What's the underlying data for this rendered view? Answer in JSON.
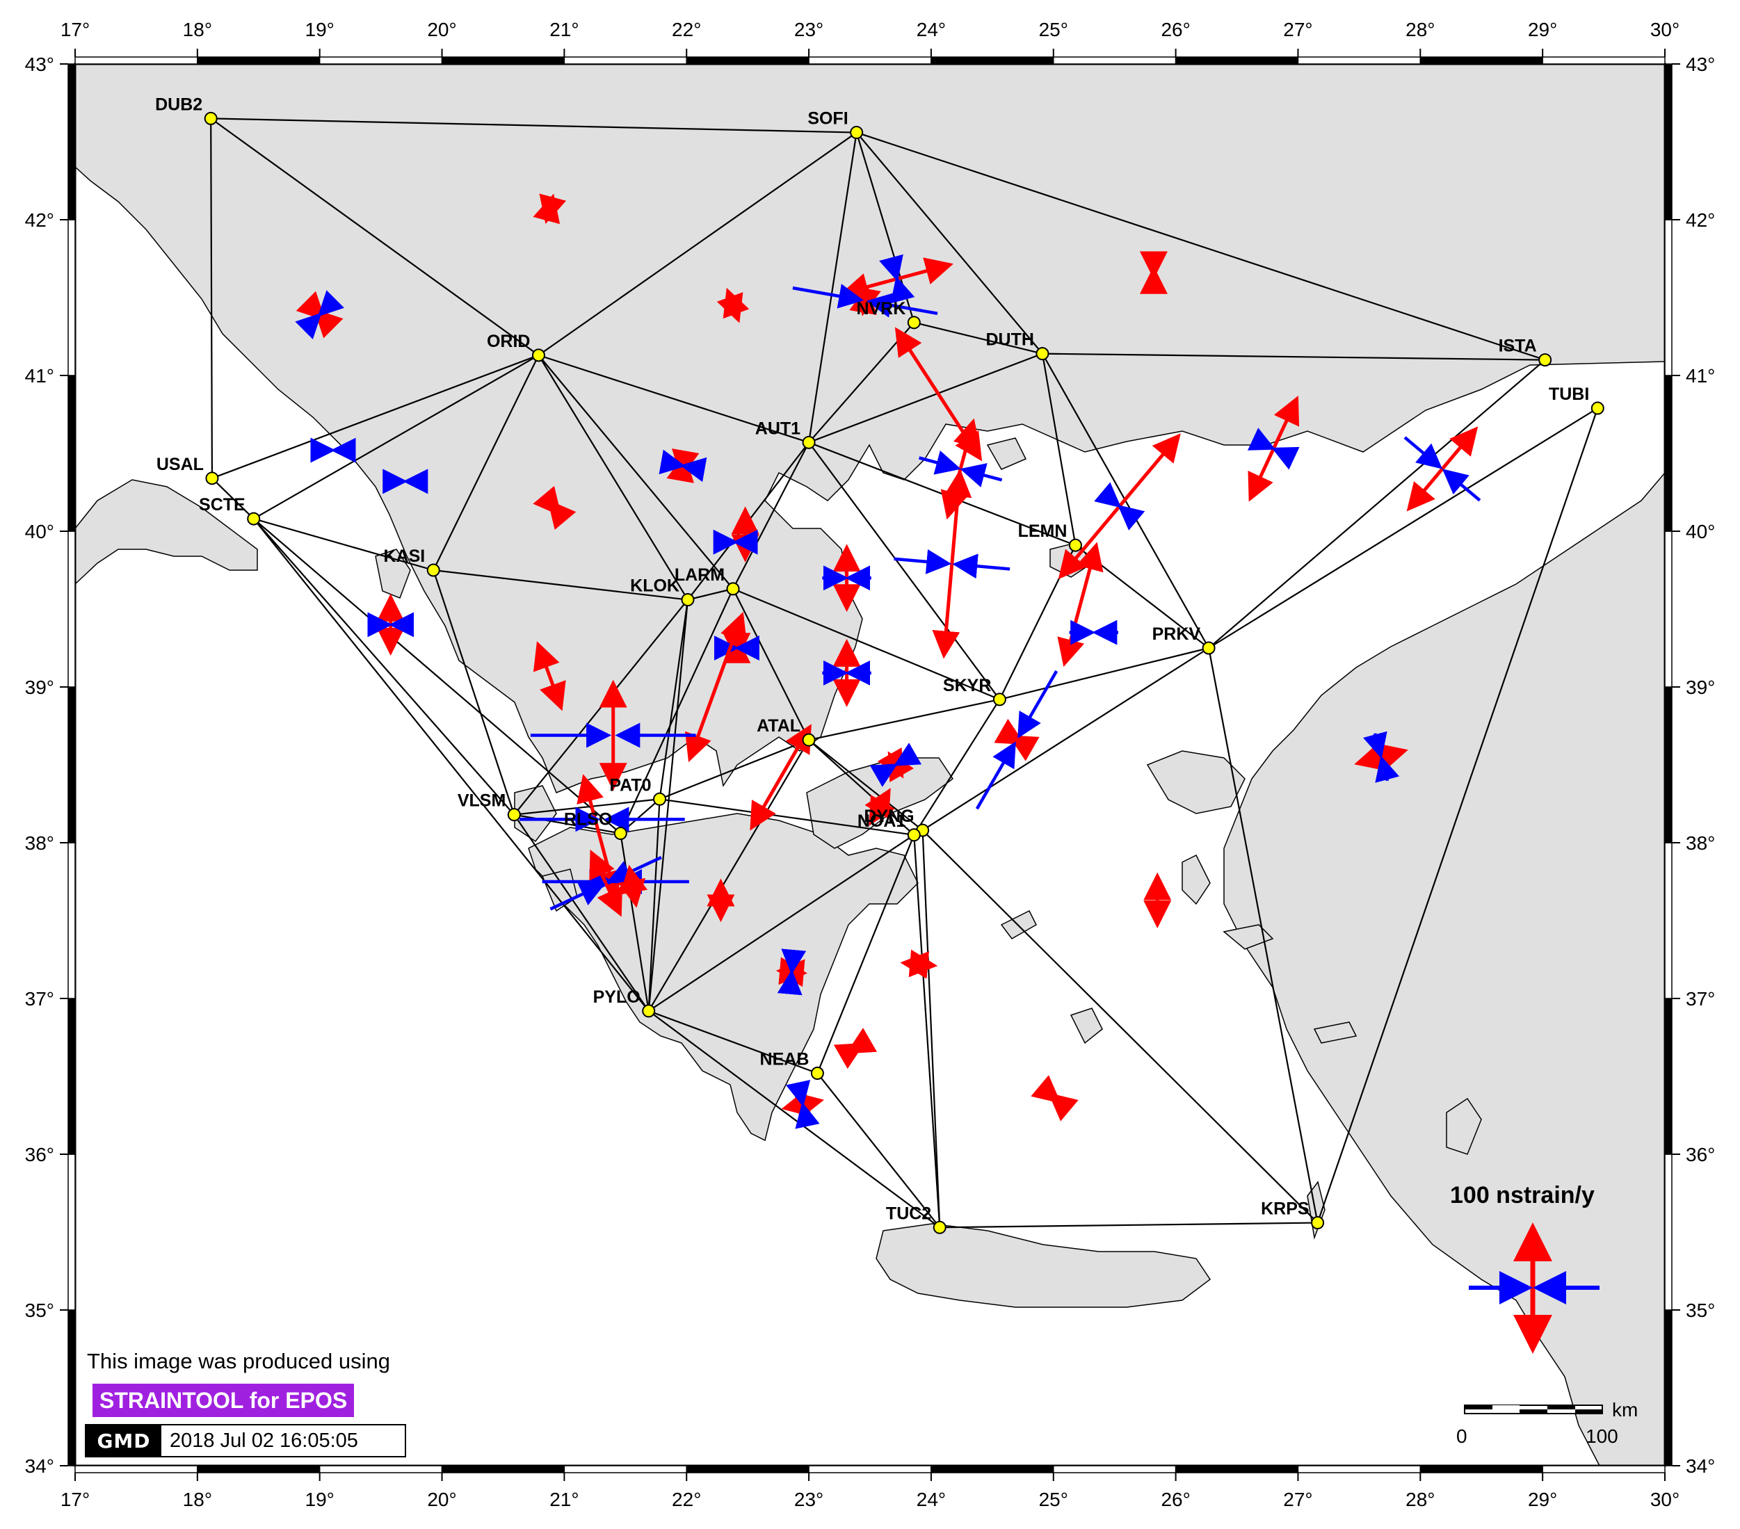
{
  "map": {
    "extent": {
      "lon": [
        17,
        30
      ],
      "lat": [
        34,
        43
      ]
    },
    "lon_ticks": [
      17,
      18,
      19,
      20,
      21,
      22,
      23,
      24,
      25,
      26,
      27,
      28,
      29,
      30
    ],
    "lat_ticks": [
      34,
      35,
      36,
      37,
      38,
      39,
      40,
      41,
      42,
      43
    ],
    "degree_symbol": "°",
    "colors": {
      "land": "#e0e0e0",
      "sea": "#ffffff",
      "network_line": "#000000",
      "station_fill": "#ffff00",
      "extension": "#ff0000",
      "compression": "#0000ff"
    }
  },
  "stations": [
    {
      "name": "DUB2",
      "lon": 18.11,
      "lat": 42.65
    },
    {
      "name": "SOFI",
      "lon": 23.39,
      "lat": 42.56
    },
    {
      "name": "ORID",
      "lon": 20.79,
      "lat": 41.13
    },
    {
      "name": "NVRK",
      "lon": 23.86,
      "lat": 41.34
    },
    {
      "name": "DUTH",
      "lon": 24.91,
      "lat": 41.14
    },
    {
      "name": "ISTA",
      "lon": 29.02,
      "lat": 41.1
    },
    {
      "name": "TUBI",
      "lon": 29.45,
      "lat": 40.79
    },
    {
      "name": "USAL",
      "lon": 18.12,
      "lat": 40.34
    },
    {
      "name": "SCTE",
      "lon": 18.46,
      "lat": 40.08
    },
    {
      "name": "AUT1",
      "lon": 23.0,
      "lat": 40.57
    },
    {
      "name": "KASI",
      "lon": 19.93,
      "lat": 39.75
    },
    {
      "name": "KLOK",
      "lon": 22.01,
      "lat": 39.56
    },
    {
      "name": "LARM",
      "lon": 22.38,
      "lat": 39.63
    },
    {
      "name": "LEMN",
      "lon": 25.18,
      "lat": 39.91
    },
    {
      "name": "PRKV",
      "lon": 26.27,
      "lat": 39.25
    },
    {
      "name": "SKYR",
      "lon": 24.56,
      "lat": 38.92
    },
    {
      "name": "ATAL",
      "lon": 23.0,
      "lat": 38.66
    },
    {
      "name": "PAT0",
      "lon": 21.78,
      "lat": 38.28
    },
    {
      "name": "VLSM",
      "lon": 20.59,
      "lat": 38.18
    },
    {
      "name": "RLSO",
      "lon": 21.46,
      "lat": 38.06
    },
    {
      "name": "DYNG",
      "lon": 23.93,
      "lat": 38.08
    },
    {
      "name": "NOA1",
      "lon": 23.86,
      "lat": 38.05
    },
    {
      "name": "PYLO",
      "lon": 21.69,
      "lat": 36.92
    },
    {
      "name": "NEAB",
      "lon": 23.07,
      "lat": 36.52
    },
    {
      "name": "TUC2",
      "lon": 24.07,
      "lat": 35.53
    },
    {
      "name": "KRPS",
      "lon": 27.16,
      "lat": 35.56
    }
  ],
  "network_edges": [
    [
      "DUB2",
      "SOFI"
    ],
    [
      "DUB2",
      "USAL"
    ],
    [
      "DUB2",
      "ORID"
    ],
    [
      "SOFI",
      "ORID"
    ],
    [
      "SOFI",
      "AUT1"
    ],
    [
      "SOFI",
      "NVRK"
    ],
    [
      "SOFI",
      "DUTH"
    ],
    [
      "SOFI",
      "ISTA"
    ],
    [
      "ORID",
      "USAL"
    ],
    [
      "ORID",
      "SCTE"
    ],
    [
      "ORID",
      "KASI"
    ],
    [
      "ORID",
      "KLOK"
    ],
    [
      "ORID",
      "AUT1"
    ],
    [
      "ORID",
      "LARM"
    ],
    [
      "USAL",
      "SCTE"
    ],
    [
      "NVRK",
      "AUT1"
    ],
    [
      "NVRK",
      "DUTH"
    ],
    [
      "DUTH",
      "AUT1"
    ],
    [
      "DUTH",
      "ISTA"
    ],
    [
      "DUTH",
      "LEMN"
    ],
    [
      "DUTH",
      "PRKV"
    ],
    [
      "ISTA",
      "PRKV"
    ],
    [
      "TUBI",
      "PRKV"
    ],
    [
      "TUBI",
      "KRPS"
    ],
    [
      "AUT1",
      "KLOK"
    ],
    [
      "AUT1",
      "LARM"
    ],
    [
      "AUT1",
      "LEMN"
    ],
    [
      "AUT1",
      "SKYR"
    ],
    [
      "SCTE",
      "KASI"
    ],
    [
      "SCTE",
      "VLSM"
    ],
    [
      "SCTE",
      "RLSO"
    ],
    [
      "SCTE",
      "PYLO"
    ],
    [
      "KASI",
      "KLOK"
    ],
    [
      "KASI",
      "VLSM"
    ],
    [
      "KLOK",
      "LARM"
    ],
    [
      "KLOK",
      "VLSM"
    ],
    [
      "KLOK",
      "PAT0"
    ],
    [
      "KLOK",
      "PYLO"
    ],
    [
      "LARM",
      "SKYR"
    ],
    [
      "LARM",
      "ATAL"
    ],
    [
      "LARM",
      "RLSO"
    ],
    [
      "LEMN",
      "PRKV"
    ],
    [
      "LEMN",
      "SKYR"
    ],
    [
      "PRKV",
      "SKYR"
    ],
    [
      "PRKV",
      "KRPS"
    ],
    [
      "PRKV",
      "DYNG"
    ],
    [
      "SKYR",
      "ATAL"
    ],
    [
      "SKYR",
      "NOA1"
    ],
    [
      "ATAL",
      "PAT0"
    ],
    [
      "ATAL",
      "NOA1"
    ],
    [
      "ATAL",
      "DYNG"
    ],
    [
      "ATAL",
      "PYLO"
    ],
    [
      "PAT0",
      "VLSM"
    ],
    [
      "PAT0",
      "RLSO"
    ],
    [
      "PAT0",
      "NOA1"
    ],
    [
      "PAT0",
      "PYLO"
    ],
    [
      "VLSM",
      "RLSO"
    ],
    [
      "VLSM",
      "PYLO"
    ],
    [
      "RLSO",
      "PYLO"
    ],
    [
      "NOA1",
      "PYLO"
    ],
    [
      "NOA1",
      "NEAB"
    ],
    [
      "NOA1",
      "TUC2"
    ],
    [
      "DYNG",
      "TUC2"
    ],
    [
      "DYNG",
      "KRPS"
    ],
    [
      "PYLO",
      "NEAB"
    ],
    [
      "PYLO",
      "TUC2"
    ],
    [
      "NEAB",
      "TUC2"
    ],
    [
      "TUC2",
      "KRPS"
    ]
  ],
  "strain_axes": [
    {
      "lon": 19.0,
      "lat": 41.39,
      "ext": 0.08,
      "ext_az": 135,
      "comp": 0.08
    },
    {
      "lon": 20.88,
      "lat": 42.07,
      "ext": 0.2,
      "ext_az": 15,
      "comp": 0.0
    },
    {
      "lon": 22.38,
      "lat": 41.45,
      "ext": 0.25,
      "ext_az": 160,
      "comp": 0.0
    },
    {
      "lon": 19.11,
      "lat": 40.52,
      "ext": 0.0,
      "ext_az": 0,
      "comp": 0.2
    },
    {
      "lon": 19.7,
      "lat": 40.32,
      "ext": 0.0,
      "ext_az": 0,
      "comp": 0.2
    },
    {
      "lon": 21.97,
      "lat": 40.42,
      "ext": 0.15,
      "ext_az": 10,
      "comp": 0.06
    },
    {
      "lon": 20.92,
      "lat": 40.15,
      "ext": 0.12,
      "ext_az": 140,
      "comp": 0.0
    },
    {
      "lon": 23.72,
      "lat": 41.62,
      "ext": 0.9,
      "ext_az": 75,
      "comp": 0.06
    },
    {
      "lon": 23.46,
      "lat": 41.48,
      "ext": 0.2,
      "ext_az": 10,
      "comp": 1.2
    },
    {
      "lon": 24.06,
      "lat": 40.88,
      "ext": 1.25,
      "ext_az": 147,
      "comp": 0.0
    },
    {
      "lon": 24.24,
      "lat": 40.4,
      "ext": 0.8,
      "ext_az": 15,
      "comp": 0.7
    },
    {
      "lon": 24.17,
      "lat": 39.79,
      "ext": 1.5,
      "ext_az": 5,
      "comp": 0.95
    },
    {
      "lon": 25.54,
      "lat": 40.16,
      "ext": 1.5,
      "ext_az": 40,
      "comp": 0.2
    },
    {
      "lon": 25.22,
      "lat": 39.53,
      "ext": 1.0,
      "ext_az": 15,
      "comp": 0.0
    },
    {
      "lon": 25.33,
      "lat": 39.35,
      "ext": 0.0,
      "ext_az": 0,
      "comp": 0.4
    },
    {
      "lon": 26.8,
      "lat": 40.53,
      "ext": 0.9,
      "ext_az": 25,
      "comp": 0.25
    },
    {
      "lon": 28.18,
      "lat": 40.4,
      "ext": 0.85,
      "ext_az": 40,
      "comp": 0.8
    },
    {
      "lon": 25.82,
      "lat": 41.66,
      "ext": 0.05,
      "ext_az": 0,
      "comp": 0.0
    },
    {
      "lon": 22.48,
      "lat": 39.98,
      "ext": 0.4,
      "ext_az": 0,
      "comp": 0.0
    },
    {
      "lon": 22.4,
      "lat": 39.93,
      "ext": 0.0,
      "ext_az": 0,
      "comp": 0.08
    },
    {
      "lon": 23.31,
      "lat": 39.7,
      "ext": 0.5,
      "ext_az": 0,
      "comp": 0.4
    },
    {
      "lon": 23.31,
      "lat": 39.09,
      "ext": 0.5,
      "ext_az": 0,
      "comp": 0.4
    },
    {
      "lon": 22.41,
      "lat": 39.25,
      "ext": 0.15,
      "ext_az": 0,
      "comp": 0.2
    },
    {
      "lon": 22.24,
      "lat": 39.0,
      "ext": 1.25,
      "ext_az": 20,
      "comp": 0.0
    },
    {
      "lon": 19.58,
      "lat": 39.4,
      "ext": 0.45,
      "ext_az": 0,
      "comp": 0.35
    },
    {
      "lon": 20.88,
      "lat": 39.07,
      "ext": 0.55,
      "ext_az": 160,
      "comp": 0.0
    },
    {
      "lon": 21.4,
      "lat": 38.69,
      "ext": 0.85,
      "ext_az": 0,
      "comp": 1.35
    },
    {
      "lon": 21.29,
      "lat": 38.04,
      "ext": 1.0,
      "ext_az": 165,
      "comp": 0.0
    },
    {
      "lon": 21.31,
      "lat": 38.15,
      "ext": 0.0,
      "ext_az": 0,
      "comp": 1.35
    },
    {
      "lon": 21.42,
      "lat": 37.75,
      "ext": 0.0,
      "ext_az": 0,
      "comp": 1.2
    },
    {
      "lon": 21.34,
      "lat": 37.74,
      "ext": 0.55,
      "ext_az": 155,
      "comp": 1.0
    },
    {
      "lon": 21.56,
      "lat": 37.72,
      "ext": 0.3,
      "ext_az": 170,
      "comp": 0.0
    },
    {
      "lon": 22.28,
      "lat": 37.63,
      "ext": 0.3,
      "ext_az": 0,
      "comp": 0.0
    },
    {
      "lon": 22.77,
      "lat": 38.42,
      "ext": 0.95,
      "ext_az": 30,
      "comp": 0.0
    },
    {
      "lon": 23.71,
      "lat": 38.5,
      "ext": 0.2,
      "ext_az": 150,
      "comp": 0.2
    },
    {
      "lon": 23.58,
      "lat": 38.23,
      "ext": 0.3,
      "ext_az": 30,
      "comp": 0.0
    },
    {
      "lon": 24.7,
      "lat": 38.66,
      "ext": 0.1,
      "ext_az": 120,
      "comp": 1.3
    },
    {
      "lon": 22.86,
      "lat": 37.17,
      "ext": 0.2,
      "ext_az": 95,
      "comp": 0.1
    },
    {
      "lon": 23.9,
      "lat": 37.22,
      "ext": 0.25,
      "ext_az": 95,
      "comp": 0.0
    },
    {
      "lon": 23.38,
      "lat": 36.68,
      "ext": 0.12,
      "ext_az": 60,
      "comp": 0.0
    },
    {
      "lon": 22.95,
      "lat": 36.32,
      "ext": 0.3,
      "ext_az": 78,
      "comp": 0.15
    },
    {
      "lon": 25.01,
      "lat": 36.36,
      "ext": 0.08,
      "ext_az": 130,
      "comp": 0.0
    },
    {
      "lon": 25.85,
      "lat": 37.63,
      "ext": 0.4,
      "ext_az": 0,
      "comp": 0.0
    },
    {
      "lon": 27.68,
      "lat": 38.55,
      "ext": 0.4,
      "ext_az": 75,
      "comp": 0.4
    }
  ],
  "legend": {
    "strain_label": "100 nstrain/y",
    "scale_unit": "km",
    "scale_zero": "0",
    "scale_max": "100"
  },
  "credits": {
    "line": "This image was produced using",
    "tool": "STRAINTOOL for EPOS",
    "logo": "GMD",
    "timestamp": "2018 Jul 02 16:05:05"
  }
}
